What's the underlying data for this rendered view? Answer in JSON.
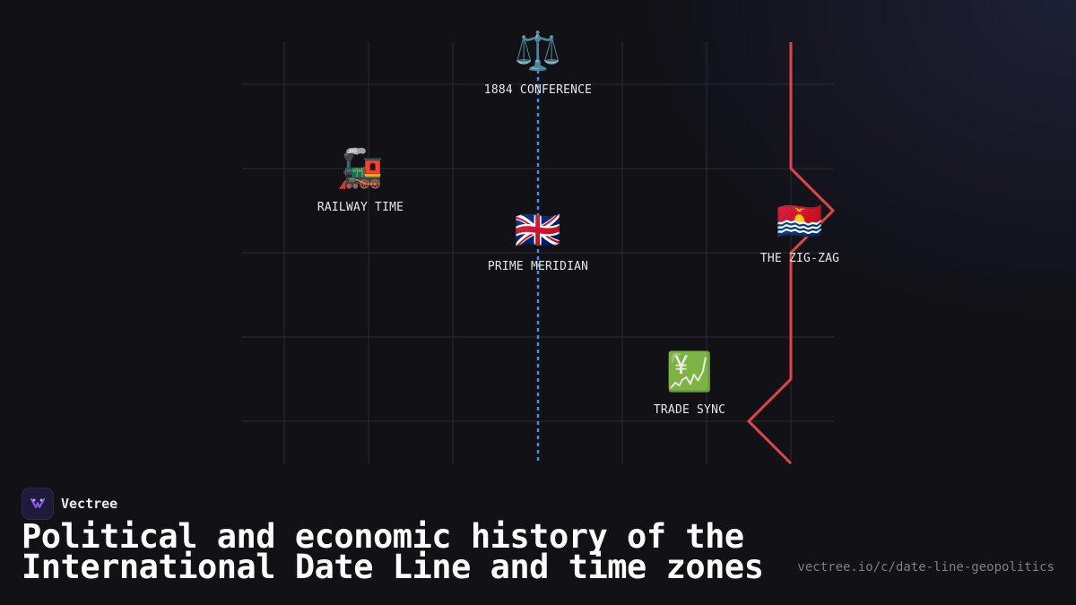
{
  "colors": {
    "background": "#111116",
    "grid": "#2a2a30",
    "meridian": "#3b8fe6",
    "date_line": "#e04448",
    "text": "#e8e8ea",
    "url": "#7d7d86",
    "brand_accent": "#8a5cf5"
  },
  "diagram": {
    "nodes": [
      {
        "id": "conference",
        "icon": "scales-icon",
        "emoji": "⚖️",
        "label": "1884 CONFERENCE"
      },
      {
        "id": "railway",
        "icon": "locomotive-icon",
        "emoji": "🚂",
        "label": "RAILWAY TIME"
      },
      {
        "id": "meridian",
        "icon": "uk-flag-icon",
        "emoji": "🇬🇧",
        "label": "PRIME MERIDIAN"
      },
      {
        "id": "zigzag",
        "icon": "kiribati-flag-icon",
        "emoji": "🇰🇮",
        "label": "THE ZIG-ZAG"
      },
      {
        "id": "trade",
        "icon": "chart-yen-icon",
        "emoji": "💹",
        "label": "TRADE SYNC"
      }
    ]
  },
  "brand": {
    "name": "Vectree",
    "icon": "vectree-logo-icon"
  },
  "title_line1": "Political and economic history of the",
  "title_line2": "International Date Line and time zones",
  "url": "vectree.io/c/date-line-geopolitics"
}
